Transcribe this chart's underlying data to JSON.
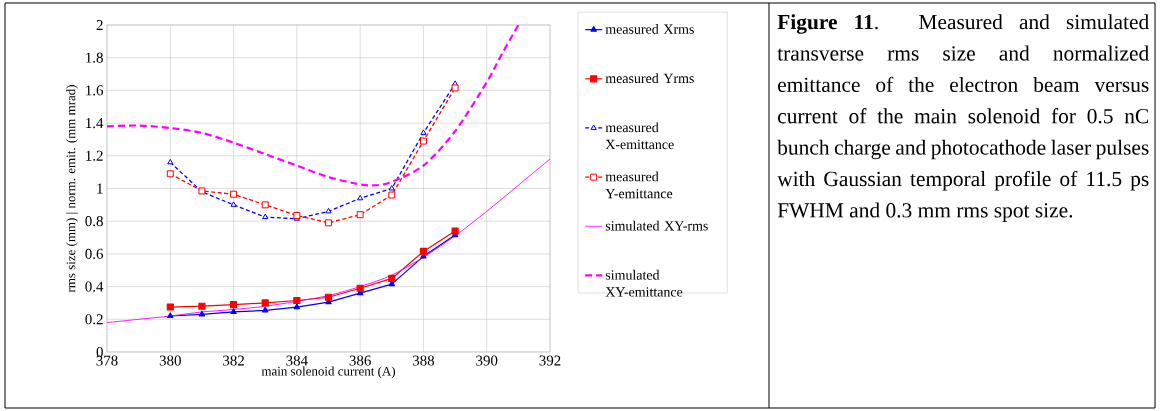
{
  "chart_data": {
    "type": "line",
    "xlabel": "main solenoid current (A)",
    "ylabel": "rms size (mm) | norm. emit. (mm mrad)",
    "xlim": [
      378,
      392
    ],
    "ylim": [
      0,
      2
    ],
    "xticks": [
      378,
      380,
      382,
      384,
      386,
      388,
      390,
      392
    ],
    "yticks": [
      0,
      0.2,
      0.4,
      0.6,
      0.8,
      1,
      1.2,
      1.4,
      1.6,
      1.8,
      2
    ],
    "grid": true,
    "legend": "right",
    "annotations": [
      "**Figure 11**. Measured and simulated transverse rms size and normalized emittance of the electron beam versus current of the main solenoid for 0.5 nC bunch charge and photocathode laser pulses with Gaussian temporal profile of 11.5 ps FWHM and 0.3 mm rms spot size."
    ],
    "series": [
      {
        "name": "measured Xrms",
        "color": "#0000ff",
        "marker": "triangle",
        "line_style": "solid",
        "x": [
          380,
          381,
          382,
          383,
          384,
          385,
          386,
          387,
          388,
          389
        ],
        "values": [
          0.22,
          0.23,
          0.245,
          0.255,
          0.275,
          0.305,
          0.36,
          0.415,
          0.585,
          0.715
        ]
      },
      {
        "name": "measured Yrms",
        "color": "#ff0000",
        "marker": "square",
        "line_style": "solid",
        "x": [
          380,
          381,
          382,
          383,
          384,
          385,
          386,
          387,
          388,
          389
        ],
        "values": [
          0.275,
          0.28,
          0.29,
          0.3,
          0.315,
          0.335,
          0.39,
          0.45,
          0.615,
          0.74
        ]
      },
      {
        "name": "measured X-emittance",
        "color": "#0000ff",
        "marker": "triangle",
        "line_style": "dashed",
        "x": [
          380,
          381,
          382,
          383,
          384,
          385,
          386,
          387,
          388,
          389
        ],
        "values": [
          1.16,
          0.98,
          0.9,
          0.825,
          0.815,
          0.86,
          0.94,
          1.0,
          1.34,
          1.64
        ]
      },
      {
        "name": "measured Y-emittance",
        "color": "#ff0000",
        "marker": "square",
        "line_style": "dashed",
        "x": [
          380,
          381,
          382,
          383,
          384,
          385,
          386,
          387,
          388,
          389
        ],
        "values": [
          1.09,
          0.985,
          0.965,
          0.9,
          0.835,
          0.79,
          0.84,
          0.96,
          1.29,
          1.615
        ]
      },
      {
        "name": "simulated XY-rms",
        "color": "#ff00ff",
        "marker": "none",
        "line_style": "solid",
        "x": [
          378,
          379,
          380,
          381,
          382,
          383,
          384,
          385,
          386,
          387,
          388,
          389,
          390,
          391,
          392
        ],
        "values": [
          0.18,
          0.2,
          0.22,
          0.245,
          0.26,
          0.28,
          0.31,
          0.345,
          0.4,
          0.47,
          0.58,
          0.71,
          0.86,
          1.02,
          1.18
        ]
      },
      {
        "name": "simulated XY-emittance",
        "color": "#ff00ff",
        "marker": "none",
        "line_style": "dashed",
        "x": [
          378,
          379,
          380,
          381,
          382,
          383,
          384,
          385,
          386,
          386.5,
          387,
          388,
          389,
          390,
          390.5,
          391
        ],
        "values": [
          1.38,
          1.385,
          1.37,
          1.34,
          1.28,
          1.21,
          1.14,
          1.07,
          1.025,
          1.02,
          1.04,
          1.14,
          1.35,
          1.65,
          1.83,
          2.0
        ]
      }
    ]
  }
}
